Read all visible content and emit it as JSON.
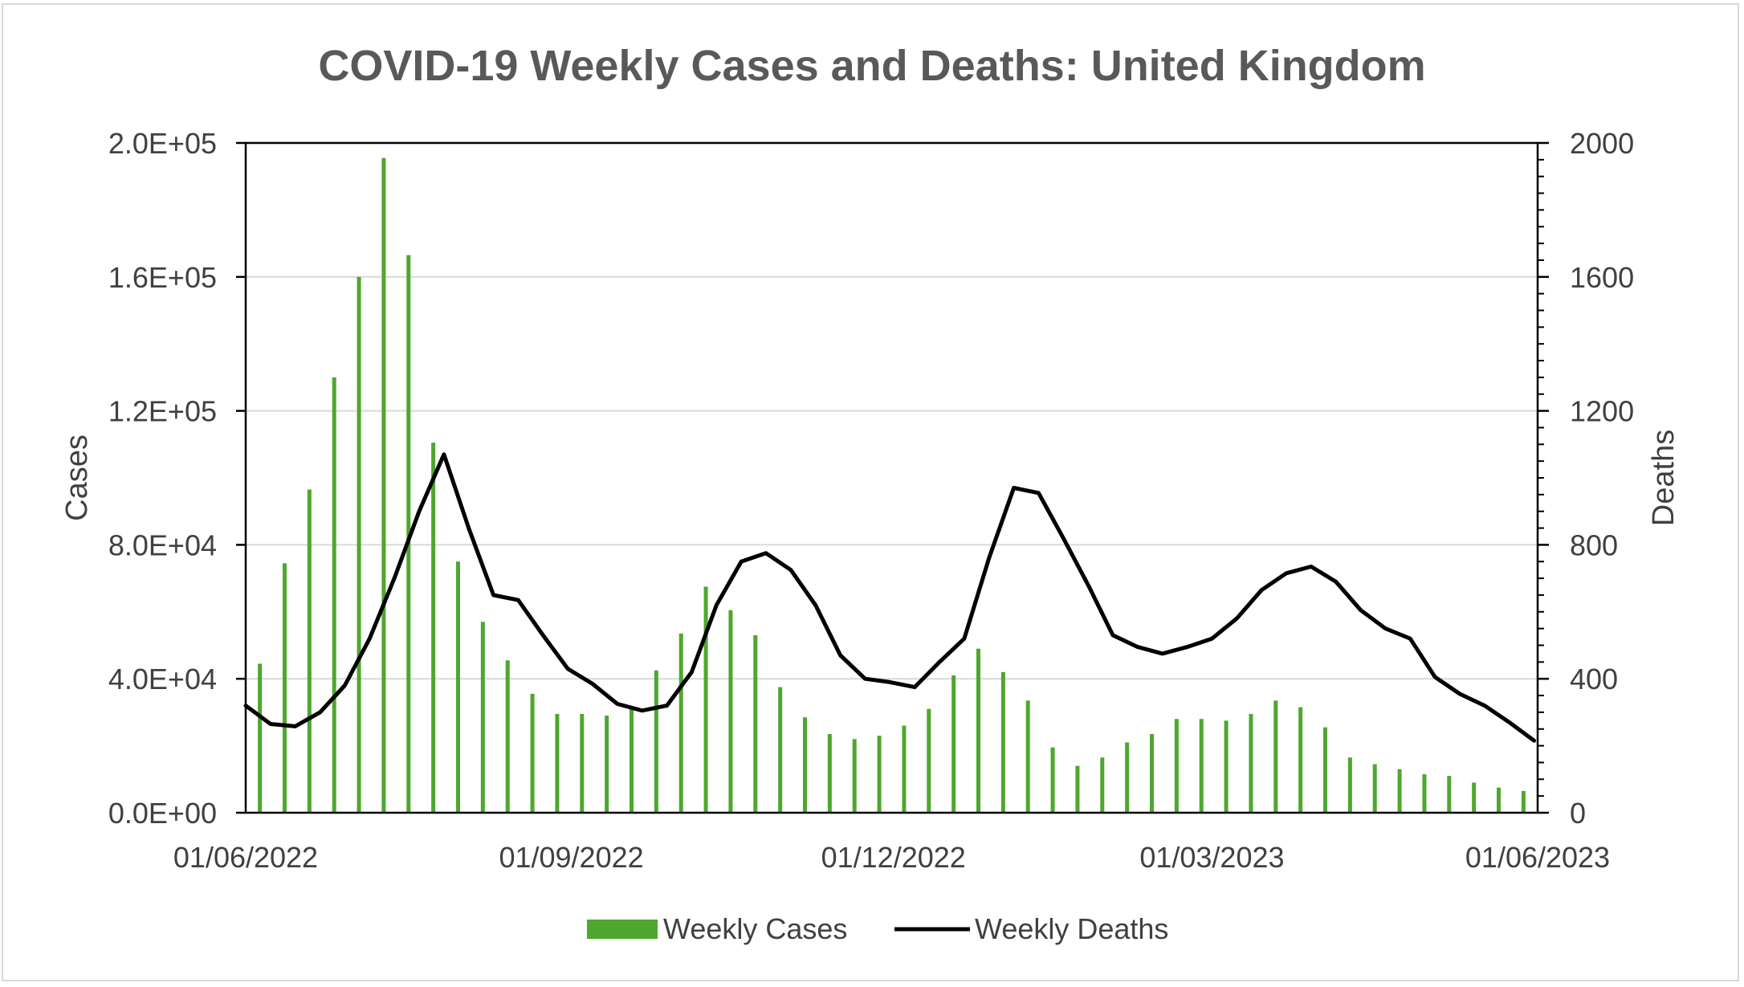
{
  "chart_data": {
    "type": "bar+line",
    "title": "COVID-19 Weekly Cases and Deaths: United Kingdom",
    "y_left_label": "Cases",
    "y_right_label": "Deaths",
    "x_axis": {
      "type": "date",
      "range": [
        "01/06/2022",
        "01/06/2023"
      ],
      "tick_labels": [
        "01/06/2022",
        "01/09/2022",
        "01/12/2022",
        "01/03/2023",
        "01/06/2023"
      ]
    },
    "y_left": {
      "range": [
        0,
        200000
      ],
      "tick_labels": [
        "0.0E+00",
        "4.0E+04",
        "8.0E+04",
        "1.2E+05",
        "1.6E+05",
        "2.0E+05"
      ],
      "tick_values": [
        0,
        40000,
        80000,
        120000,
        160000,
        200000
      ]
    },
    "y_right": {
      "range": [
        0,
        2000
      ],
      "tick_labels": [
        "0",
        "400",
        "800",
        "1200",
        "1600",
        "2000"
      ],
      "tick_values": [
        0,
        400,
        800,
        1200,
        1600,
        2000
      ]
    },
    "grid": "horizontal",
    "legend": {
      "position": "bottom",
      "entries": [
        "Weekly Cases",
        "Weekly Deaths"
      ]
    },
    "colors": {
      "cases": "#4ea72e",
      "deaths": "#000000",
      "grid": "#d9d9d9",
      "text": "#404040",
      "title": "#595959"
    },
    "series": [
      {
        "name": "Weekly Cases",
        "type": "bar",
        "axis": "left",
        "x": [
          "2022-06-05",
          "2022-06-12",
          "2022-06-19",
          "2022-06-26",
          "2022-07-03",
          "2022-07-10",
          "2022-07-17",
          "2022-07-24",
          "2022-07-31",
          "2022-08-07",
          "2022-08-14",
          "2022-08-21",
          "2022-08-28",
          "2022-09-04",
          "2022-09-11",
          "2022-09-18",
          "2022-09-25",
          "2022-10-02",
          "2022-10-09",
          "2022-10-16",
          "2022-10-23",
          "2022-10-30",
          "2022-11-06",
          "2022-11-13",
          "2022-11-20",
          "2022-11-27",
          "2022-12-04",
          "2022-12-11",
          "2022-12-18",
          "2022-12-25",
          "2023-01-01",
          "2023-01-08",
          "2023-01-15",
          "2023-01-22",
          "2023-01-29",
          "2023-02-05",
          "2023-02-12",
          "2023-02-19",
          "2023-02-26",
          "2023-03-05",
          "2023-03-12",
          "2023-03-19",
          "2023-03-26",
          "2023-04-02",
          "2023-04-09",
          "2023-04-16",
          "2023-04-23",
          "2023-04-30",
          "2023-05-07",
          "2023-05-14",
          "2023-05-21",
          "2023-05-28"
        ],
        "values": [
          44500,
          74500,
          96500,
          130000,
          160000,
          195500,
          166500,
          110500,
          75000,
          57000,
          45500,
          35500,
          29500,
          29500,
          29000,
          31000,
          42500,
          53500,
          67500,
          60500,
          53000,
          37500,
          28500,
          23500,
          22000,
          23000,
          26000,
          31000,
          41000,
          49000,
          42000,
          33500,
          19500,
          14000,
          16500,
          21000,
          23500,
          28000,
          28000,
          27500,
          29500,
          33500,
          31500,
          25500,
          16500,
          14500,
          13000,
          11500,
          11000,
          9000,
          7500,
          6500
        ]
      },
      {
        "name": "Weekly Deaths",
        "type": "line",
        "axis": "right",
        "x": [
          "2022-06-01",
          "2022-06-08",
          "2022-06-15",
          "2022-06-22",
          "2022-06-29",
          "2022-07-06",
          "2022-07-13",
          "2022-07-20",
          "2022-07-27",
          "2022-08-03",
          "2022-08-10",
          "2022-08-17",
          "2022-08-24",
          "2022-08-31",
          "2022-09-07",
          "2022-09-14",
          "2022-09-21",
          "2022-09-28",
          "2022-10-05",
          "2022-10-12",
          "2022-10-19",
          "2022-10-26",
          "2022-11-02",
          "2022-11-09",
          "2022-11-16",
          "2022-11-23",
          "2022-11-30",
          "2022-12-07",
          "2022-12-14",
          "2022-12-21",
          "2022-12-28",
          "2023-01-04",
          "2023-01-11",
          "2023-01-18",
          "2023-01-25",
          "2023-02-01",
          "2023-02-08",
          "2023-02-15",
          "2023-02-22",
          "2023-03-01",
          "2023-03-08",
          "2023-03-15",
          "2023-03-22",
          "2023-03-29",
          "2023-04-05",
          "2023-04-12",
          "2023-04-19",
          "2023-04-26",
          "2023-05-03",
          "2023-05-10",
          "2023-05-17",
          "2023-05-24",
          "2023-05-31"
        ],
        "values": [
          320,
          265,
          258,
          300,
          380,
          520,
          700,
          900,
          1070,
          850,
          650,
          635,
          530,
          430,
          385,
          325,
          305,
          320,
          420,
          620,
          750,
          775,
          725,
          620,
          470,
          400,
          390,
          375,
          450,
          520,
          760,
          970,
          955,
          820,
          680,
          530,
          495,
          475,
          495,
          520,
          580,
          665,
          715,
          735,
          690,
          605,
          550,
          520,
          405,
          355,
          320,
          270,
          215
        ]
      }
    ]
  }
}
